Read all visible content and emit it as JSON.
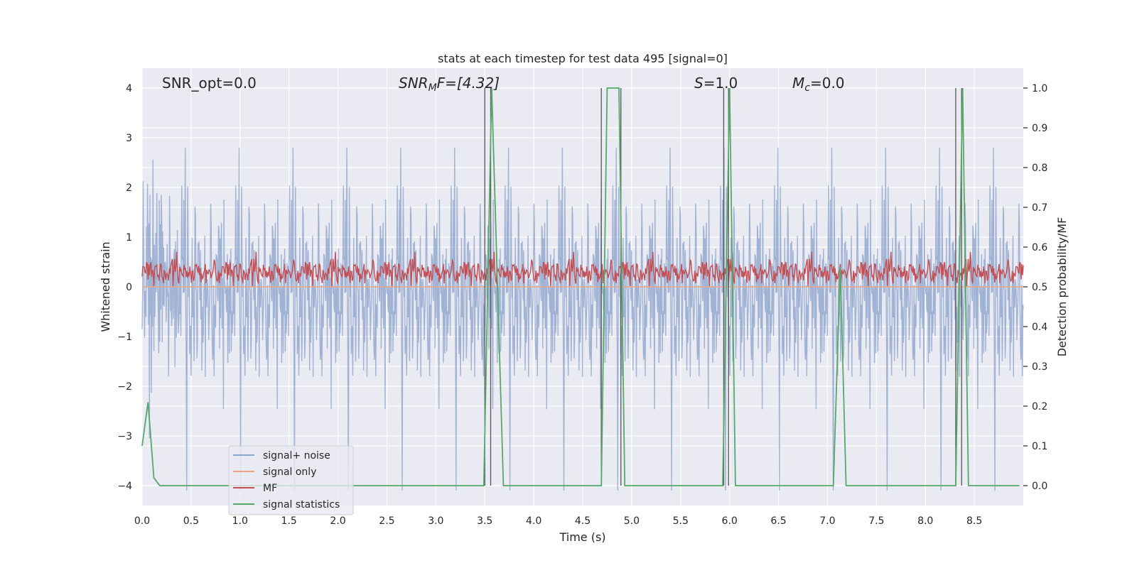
{
  "chart_data": {
    "type": "line",
    "title": "stats at each timestep for test data 495 [signal=0]",
    "xlabel": "Time (s)",
    "ylabel_left": "Whitened strain",
    "ylabel_right": "Detection probability/MF",
    "xlim": [
      0.0,
      9.0
    ],
    "ylim_left": [
      -4.4,
      4.4
    ],
    "ylim_right": [
      -0.05,
      1.05
    ],
    "x_ticks": [
      "0.0",
      "0.5",
      "1.0",
      "1.5",
      "2.0",
      "2.5",
      "3.0",
      "3.5",
      "4.0",
      "4.5",
      "5.0",
      "5.5",
      "6.0",
      "6.5",
      "7.0",
      "7.5",
      "8.0",
      "8.5"
    ],
    "x_tick_values": [
      0.0,
      0.5,
      1.0,
      1.5,
      2.0,
      2.5,
      3.0,
      3.5,
      4.0,
      4.5,
      5.0,
      5.5,
      6.0,
      6.5,
      7.0,
      7.5,
      8.0,
      8.5
    ],
    "y_left_ticks": [
      "4",
      "3",
      "2",
      "1",
      "0",
      "−1",
      "−2",
      "−3",
      "−4"
    ],
    "y_left_tick_values": [
      4,
      3,
      2,
      1,
      0,
      -1,
      -2,
      -3,
      -4
    ],
    "y_right_ticks": [
      "1.0",
      "0.9",
      "0.8",
      "0.7",
      "0.6",
      "0.5",
      "0.4",
      "0.3",
      "0.2",
      "0.1",
      "0.0"
    ],
    "y_right_tick_values": [
      1.0,
      0.9,
      0.8,
      0.7,
      0.6,
      0.5,
      0.4,
      0.3,
      0.2,
      0.1,
      0.0
    ],
    "grid": true,
    "legend_position": "lower-left",
    "annotations": {
      "snr_opt": "SNR_opt=0.0",
      "snr_mf_prefix": "SNR",
      "snr_mf_sub": "M",
      "snr_mf_suffix": "F=[4.32]",
      "s_name": "S",
      "s_value": "=1.0",
      "mc_name": "M",
      "mc_sub": "c",
      "mc_value": "=0.0"
    },
    "series": [
      {
        "name": "signal+ noise",
        "axis": "left",
        "color": "#8fa5cd",
        "description": "noisy strain, roughly within ±2.5 with spikes to ±4"
      },
      {
        "name": "signal only",
        "axis": "left",
        "color": "#e9a583",
        "x": [
          0.0,
          9.0
        ],
        "y": [
          0.0,
          0.0
        ]
      },
      {
        "name": "MF",
        "axis": "right",
        "color": "#c44e52",
        "description": "matched filter output, roughly 0.50–0.60"
      },
      {
        "name": "signal statistics",
        "axis": "right",
        "color": "#55a868",
        "x": [
          0.0,
          0.06,
          0.12,
          0.18,
          3.49,
          3.57,
          3.69,
          4.69,
          4.75,
          4.87,
          4.93,
          5.93,
          6.0,
          6.06,
          7.06,
          7.13,
          7.19,
          8.31,
          8.38,
          8.44,
          8.96
        ],
        "y": [
          0.1,
          0.21,
          0.02,
          0.0,
          0.0,
          1.0,
          0.0,
          0.0,
          1.0,
          1.0,
          0.0,
          0.0,
          1.0,
          0.0,
          0.0,
          0.55,
          0.0,
          0.0,
          1.0,
          0.0,
          0.0
        ]
      }
    ],
    "vertical_lines": [
      3.5,
      3.56,
      4.69,
      4.89,
      5.94,
      5.99,
      8.31,
      8.37
    ]
  }
}
